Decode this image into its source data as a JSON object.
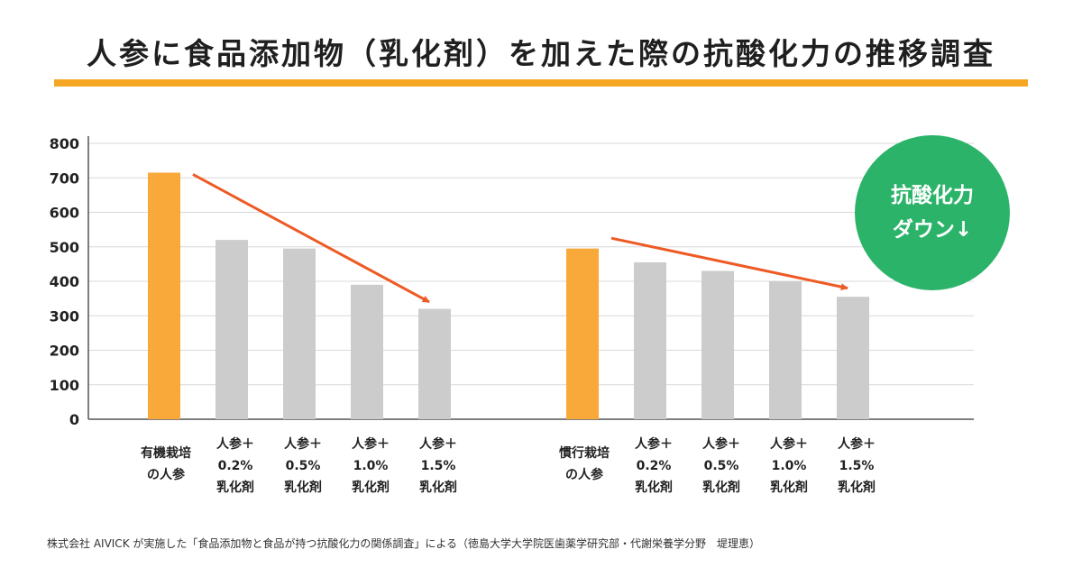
{
  "title": "人参に食品添加物（乳化剤）を加えた際の抗酸化力の推移調査",
  "colors": {
    "accent": "#f5a623",
    "highlight_bar": "#f8a93a",
    "gray_bar": "#cccccc",
    "arrow": "#ee5a24",
    "badge": "#2cb36a",
    "grid": "#d8d8d8",
    "axis": "#555555"
  },
  "badge": {
    "line1": "抗酸化力",
    "line2": "ダウン↓"
  },
  "source": "株式会社 AIVICK が実施した「食品添加物と食品が持つ抗酸化力の関係調査」による（徳島大学大学院医歯薬学研究部・代謝栄養学分野　堤理恵）",
  "chart_data": {
    "type": "bar",
    "ylim": [
      0,
      800
    ],
    "yticks": [
      "0",
      "100",
      "200",
      "300",
      "400",
      "500",
      "600",
      "700",
      "800"
    ],
    "grid": true,
    "groups": [
      {
        "categories": [
          [
            "有機栽培",
            "の人参"
          ],
          [
            "人参＋",
            "0.2%",
            "乳化剤"
          ],
          [
            "人参＋",
            "0.5%",
            "乳化剤"
          ],
          [
            "人参＋",
            "1.0%",
            "乳化剤"
          ],
          [
            "人参＋",
            "1.5%",
            "乳化剤"
          ]
        ],
        "values": [
          715,
          520,
          495,
          390,
          320
        ],
        "highlight": [
          true,
          false,
          false,
          false,
          false
        ]
      },
      {
        "categories": [
          [
            "慣行栽培",
            "の人参"
          ],
          [
            "人参＋",
            "0.2%",
            "乳化剤"
          ],
          [
            "人参＋",
            "0.5%",
            "乳化剤"
          ],
          [
            "人参＋",
            "1.0%",
            "乳化剤"
          ],
          [
            "人参＋",
            "1.5%",
            "乳化剤"
          ]
        ],
        "values": [
          495,
          455,
          430,
          400,
          355
        ],
        "highlight": [
          true,
          false,
          false,
          false,
          false
        ]
      }
    ],
    "trend_arrows": [
      {
        "from": 710,
        "to": 340
      },
      {
        "from": 525,
        "to": 380
      }
    ]
  }
}
